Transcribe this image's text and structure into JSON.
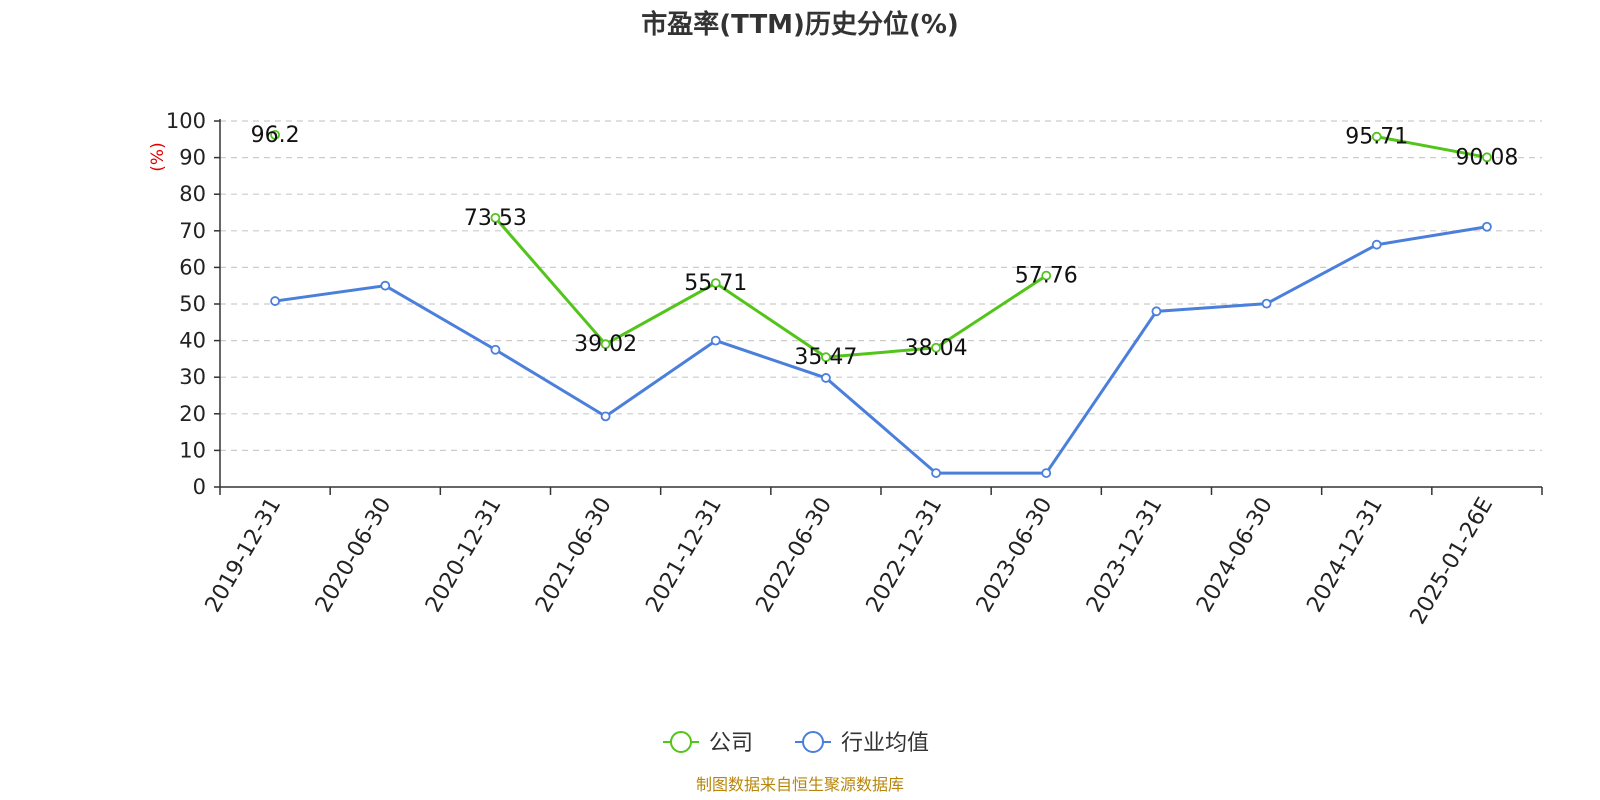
{
  "chart_data": {
    "type": "line",
    "title": "市盈率(TTM)历史分位(%)",
    "y_unit": "(%)",
    "categories": [
      "2019-12-31",
      "2020-06-30",
      "2020-12-31",
      "2021-06-30",
      "2021-12-31",
      "2022-06-30",
      "2022-12-31",
      "2023-06-30",
      "2023-12-31",
      "2024-06-30",
      "2024-12-31",
      "2025-01-26E"
    ],
    "ylim": [
      0,
      100
    ],
    "yticks": [
      "0",
      "10",
      "20",
      "30",
      "40",
      "50",
      "60",
      "70",
      "80",
      "90",
      "100"
    ],
    "grid": true,
    "legend_position": "bottom-center",
    "series": [
      {
        "name": "公司",
        "color": "#52c41a",
        "values": [
          96.2,
          null,
          73.53,
          39.02,
          55.71,
          35.47,
          38.04,
          57.76,
          null,
          null,
          95.71,
          90.08
        ],
        "labels": [
          "96.2",
          null,
          "73.53",
          "39.02",
          "55.71",
          "35.47",
          "38.04",
          "57.76",
          null,
          null,
          "95.71",
          "90.08"
        ]
      },
      {
        "name": "行业均值",
        "color": "#4a7fdb",
        "values": [
          50.8,
          55.0,
          37.5,
          19.3,
          40.0,
          29.8,
          3.8,
          3.8,
          48.0,
          50.1,
          66.2,
          71.1
        ]
      }
    ]
  },
  "footer": {
    "source": "制图数据来自恒生聚源数据库",
    "source_color": "#b8860b"
  },
  "colors": {
    "unit_label": "#e00000",
    "axis": "#333333",
    "grid": "#cccccc"
  }
}
